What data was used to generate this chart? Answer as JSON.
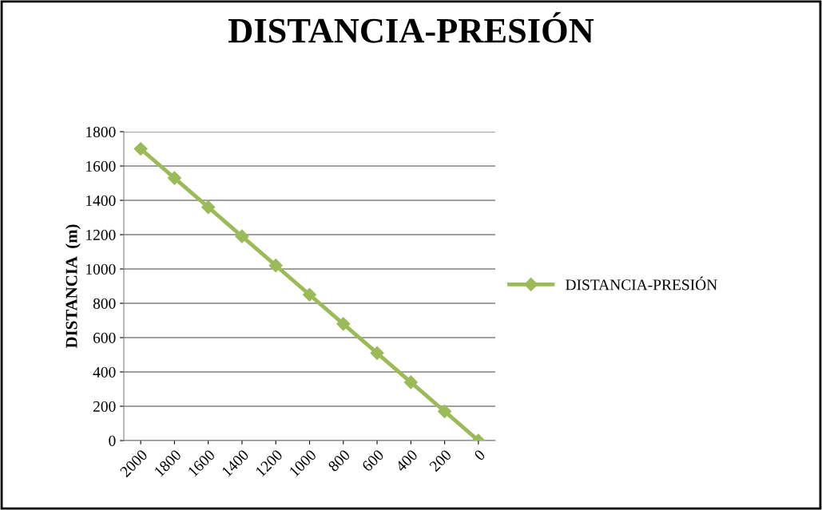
{
  "chart_data": {
    "type": "line",
    "title": "DISTANCIA-PRESIÓN",
    "ylabel": "DISTANCIA  (m)",
    "categories": [
      "2000",
      "1800",
      "1600",
      "1400",
      "1200",
      "1000",
      "800",
      "600",
      "400",
      "200",
      "0"
    ],
    "series": [
      {
        "name": "DISTANCIA-PRESIÓN",
        "color": "#9bbb59",
        "values": [
          1700,
          1530,
          1360,
          1190,
          1020,
          850,
          680,
          510,
          340,
          170,
          0
        ]
      }
    ],
    "ylim": [
      0,
      1800
    ],
    "yticks": [
      0,
      200,
      400,
      600,
      800,
      1000,
      1200,
      1400,
      1600,
      1800
    ],
    "grid": "y",
    "legend": "right",
    "marker": "diamond",
    "line_style": "solid"
  }
}
